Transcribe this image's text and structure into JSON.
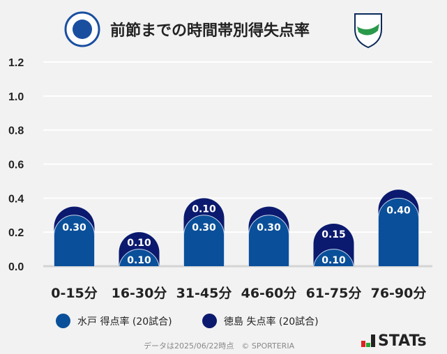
{
  "title": "前節までの時間帯別得失点率",
  "logos": {
    "left": "Mito HollyHock crest",
    "right": "TOKUSHIMA VORTIS"
  },
  "chart_data": {
    "type": "bar",
    "stacked": true,
    "categories": [
      "0-15分",
      "16-30分",
      "31-45分",
      "46-60分",
      "61-75分",
      "76-90分"
    ],
    "series": [
      {
        "name": "水戸 得点率 (20試合)",
        "values": [
          0.3,
          0.1,
          0.3,
          0.3,
          0.1,
          0.4
        ],
        "color": "#0a4f99"
      },
      {
        "name": "徳島 失点率 (20試合)",
        "values": [
          0.05,
          0.1,
          0.1,
          0.05,
          0.15,
          0.05
        ],
        "color": "#0b1a6e"
      }
    ],
    "data_labels": [
      [
        "0.30",
        "0.10",
        "0.30",
        "0.30",
        "0.10",
        "0.40"
      ],
      [
        "",
        "0.10",
        "0.10",
        "",
        "0.15",
        ""
      ]
    ],
    "yticks": [
      "0.0",
      "0.2",
      "0.4",
      "0.6",
      "0.8",
      "1.0",
      "1.2"
    ],
    "ylim": [
      0,
      1.2
    ],
    "grid": true,
    "legend": "bottom"
  },
  "footer": "データは2025/06/22時点　© SPORTERIA",
  "brand": "STATs"
}
